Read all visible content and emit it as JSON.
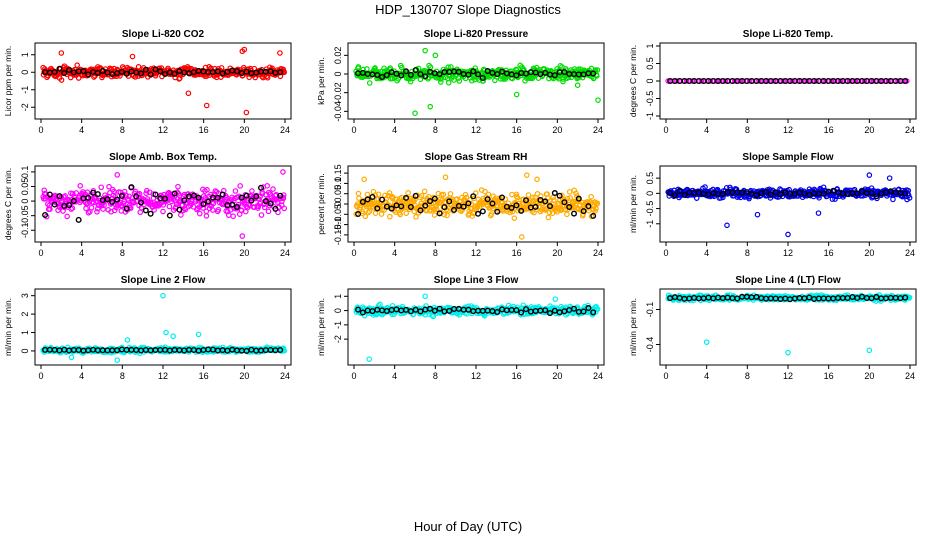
{
  "figure": {
    "title": "HDP_130707  Slope Diagnostics",
    "xlabel": "Hour of Day (UTC)"
  },
  "chart_data": [
    {
      "type": "scatter",
      "title": "Slope Li-820 CO2",
      "ylabel": "Licor ppm per min.",
      "color": "#ff0000",
      "xlim": [
        0,
        24
      ],
      "ylim": [
        -2.5,
        1.5
      ],
      "yticks": [
        -2,
        -1,
        0,
        1
      ],
      "xticks": [
        0,
        4,
        8,
        12,
        16,
        20,
        24
      ],
      "center": 0.0,
      "spread": 0.35,
      "blackSpread": 0.18,
      "outliers": [
        [
          2.0,
          1.1
        ],
        [
          9.0,
          0.9
        ],
        [
          16.3,
          -1.9
        ],
        [
          19.8,
          1.2
        ],
        [
          20.0,
          1.3
        ],
        [
          20.2,
          -2.3
        ],
        [
          14.5,
          -1.2
        ],
        [
          23.5,
          1.1
        ]
      ]
    },
    {
      "type": "scatter",
      "title": "Slope Li-820 Pressure",
      "ylabel": "kPa per min.",
      "color": "#00dd00",
      "xlim": [
        0,
        24
      ],
      "ylim": [
        -0.045,
        0.03
      ],
      "yticks": [
        -0.04,
        -0.02,
        0.0,
        0.02
      ],
      "xticks": [
        0,
        4,
        8,
        12,
        16,
        20,
        24
      ],
      "center": 0.0,
      "spread": 0.008,
      "blackSpread": 0.004,
      "outliers": [
        [
          7.0,
          0.025
        ],
        [
          8.0,
          0.02
        ],
        [
          6.0,
          -0.042
        ],
        [
          7.5,
          -0.035
        ],
        [
          16.0,
          -0.022
        ],
        [
          24.0,
          -0.028
        ],
        [
          22.0,
          -0.012
        ]
      ]
    },
    {
      "type": "scatter",
      "title": "Slope Li-820 Temp.",
      "ylabel": "degrees C per min.",
      "color": "#ff00ff",
      "xlim": [
        0,
        24
      ],
      "ylim": [
        -1.0,
        1.0
      ],
      "yticks": [
        -1.0,
        -0.5,
        0.0,
        0.5,
        1.0
      ],
      "xticks": [
        0,
        4,
        8,
        12,
        16,
        20,
        24
      ],
      "center": 0.0,
      "spread": 0.0,
      "blackSpread": 0.0,
      "outliers": []
    },
    {
      "type": "scatter",
      "title": "Slope Amb. Box Temp.",
      "ylabel": "degrees C per min.",
      "color": "#ff00ff",
      "xlim": [
        0,
        24
      ],
      "ylim": [
        -0.13,
        0.11
      ],
      "yticks": [
        -0.1,
        -0.05,
        0.0,
        0.05,
        0.1
      ],
      "xticks": [
        0,
        4,
        8,
        12,
        16,
        20,
        24
      ],
      "center": 0.0,
      "spread": 0.05,
      "blackSpread": 0.05,
      "outliers": [
        [
          19.8,
          -0.12
        ],
        [
          23.8,
          0.1
        ],
        [
          7.5,
          0.09
        ]
      ]
    },
    {
      "type": "scatter",
      "title": "Slope Gas Stream RH",
      "ylabel": "percent per min.",
      "color": "#ffaa00",
      "xlim": [
        0,
        24
      ],
      "ylim": [
        -0.17,
        0.17
      ],
      "yticks": [
        -0.15,
        -0.1,
        -0.05,
        0.0,
        0.05,
        0.1,
        0.15
      ],
      "xticks": [
        0,
        4,
        8,
        12,
        16,
        20,
        24
      ],
      "center": 0.0,
      "spread": 0.06,
      "blackSpread": 0.06,
      "outliers": [
        [
          17.0,
          0.14
        ],
        [
          18.0,
          0.12
        ],
        [
          16.5,
          -0.16
        ],
        [
          1.0,
          0.12
        ],
        [
          9.0,
          0.13
        ]
      ]
    },
    {
      "type": "scatter",
      "title": "Slope Sample Flow",
      "ylabel": "ml/min per min.",
      "color": "#0000ee",
      "xlim": [
        0,
        24
      ],
      "ylim": [
        -1.5,
        0.8
      ],
      "yticks": [
        -1.0,
        -0.5,
        0.0,
        0.5
      ],
      "xticks": [
        0,
        4,
        8,
        12,
        16,
        20,
        24
      ],
      "center": 0.0,
      "spread": 0.18,
      "blackSpread": 0.08,
      "outliers": [
        [
          12.0,
          -1.35
        ],
        [
          6.0,
          -1.05
        ],
        [
          9.0,
          -0.7
        ],
        [
          20.0,
          0.6
        ],
        [
          22.0,
          0.5
        ],
        [
          15.0,
          -0.65
        ]
      ]
    },
    {
      "type": "scatter",
      "title": "Slope Line 2 Flow",
      "ylabel": "ml/min per min.",
      "color": "#00eeee",
      "xlim": [
        0,
        24
      ],
      "ylim": [
        -0.6,
        3.2
      ],
      "yticks": [
        0,
        1,
        2,
        3
      ],
      "xticks": [
        0,
        4,
        8,
        12,
        16,
        20,
        24
      ],
      "center": 0.05,
      "spread": 0.15,
      "blackSpread": 0.05,
      "outliers": [
        [
          12.0,
          3.0
        ],
        [
          12.3,
          1.0
        ],
        [
          13.0,
          0.8
        ],
        [
          15.5,
          0.9
        ],
        [
          7.5,
          -0.5
        ],
        [
          3.0,
          -0.35
        ],
        [
          8.5,
          0.6
        ]
      ]
    },
    {
      "type": "scatter",
      "title": "Slope Line 3 Flow",
      "ylabel": "ml/min per min.",
      "color": "#00eeee",
      "xlim": [
        0,
        24
      ],
      "ylim": [
        -3.6,
        1.3
      ],
      "yticks": [
        -2,
        -1,
        0,
        1
      ],
      "xticks": [
        0,
        4,
        8,
        12,
        16,
        20,
        24
      ],
      "center": 0.0,
      "spread": 0.35,
      "blackSpread": 0.2,
      "outliers": [
        [
          1.5,
          -3.4
        ],
        [
          7.0,
          1.0
        ],
        [
          19.8,
          0.8
        ]
      ]
    },
    {
      "type": "scatter",
      "title": "Slope Line 4 (LT) Flow",
      "ylabel": "ml/min per min.",
      "color": "#00eeee",
      "xlim": [
        0,
        24
      ],
      "ylim": [
        -0.55,
        0.05
      ],
      "yticks": [
        -0.4,
        -0.1
      ],
      "xticks": [
        0,
        4,
        8,
        12,
        16,
        20,
        24
      ],
      "center": 0.0,
      "spread": 0.025,
      "blackSpread": 0.012,
      "outliers": [
        [
          4.0,
          -0.38
        ],
        [
          12.0,
          -0.47
        ],
        [
          20.0,
          -0.45
        ]
      ]
    }
  ]
}
